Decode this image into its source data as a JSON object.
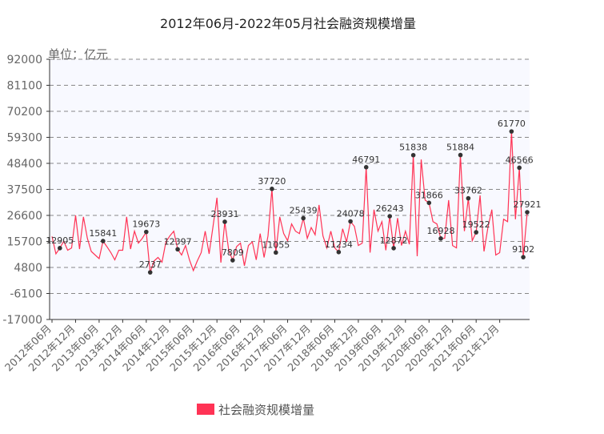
{
  "chart_data": {
    "type": "line",
    "title": "2012年06月-2022年05月社会融资规模增量",
    "unit_label": "单位：亿元",
    "y_ticks": [
      92000,
      81100,
      70200,
      59300,
      48400,
      37500,
      26600,
      15700,
      4800,
      -6100,
      -17000
    ],
    "ylim": [
      -17000,
      92000
    ],
    "grid": true,
    "legend_position": "bottom",
    "line_color": "#ff3355",
    "x_tick_labels": [
      "2012年06月",
      "2012年12月",
      "2013年06月",
      "2013年12月",
      "2014年06月",
      "2014年12月",
      "2015年06月",
      "2015年12月",
      "2016年06月",
      "2016年12月",
      "2017年06月",
      "2017年12月",
      "2018年06月",
      "2018年12月",
      "2019年06月",
      "2019年12月",
      "2020年06月",
      "2020年12月",
      "2021年06月",
      "2021年12月"
    ],
    "series": [
      {
        "name": "社会融资规模增量",
        "values": [
          17800,
          10500,
          12905,
          15800,
          12000,
          13000,
          26600,
          12500,
          26000,
          17000,
          11500,
          10000,
          8500,
          15841,
          13500,
          11000,
          8000,
          12000,
          12000,
          26000,
          12500,
          20000,
          15000,
          17000,
          19673,
          2737,
          7500,
          9000,
          7000,
          15500,
          18000,
          20000,
          12397,
          10000,
          14000,
          8000,
          3500,
          7500,
          11000,
          20000,
          10500,
          22000,
          34000,
          6800,
          23931,
          12000,
          7809,
          13500,
          15000,
          5500,
          14000,
          15500,
          8000,
          19000,
          9000,
          18000,
          37720,
          11055,
          26000,
          19000,
          16000,
          23000,
          20000,
          19000,
          25439,
          17000,
          21500,
          18500,
          31000,
          18000,
          13000,
          20000,
          13000,
          11234,
          21000,
          15500,
          24078,
          22000,
          14000,
          15000,
          46791,
          11000,
          29000,
          20000,
          24000,
          12000,
          26243,
          12872,
          25500,
          14000,
          20000,
          14500,
          51838,
          9500,
          50000,
          33000,
          31866,
          24000,
          23000,
          16928,
          17000,
          33000,
          14000,
          13000,
          51884,
          20000,
          33762,
          16000,
          19522,
          35000,
          11500,
          21500,
          29000,
          10000,
          11000,
          25000,
          24000,
          61770,
          25000,
          46566,
          9102,
          27921
        ]
      }
    ],
    "data_labels": [
      {
        "index": 2,
        "text": "12905"
      },
      {
        "index": 13,
        "text": "15841"
      },
      {
        "index": 24,
        "text": "19673"
      },
      {
        "index": 25,
        "text": "2737"
      },
      {
        "index": 32,
        "text": "12397"
      },
      {
        "index": 44,
        "text": "23931"
      },
      {
        "index": 46,
        "text": "7809"
      },
      {
        "index": 56,
        "text": "37720"
      },
      {
        "index": 57,
        "text": "11055"
      },
      {
        "index": 64,
        "text": "25439"
      },
      {
        "index": 73,
        "text": "11234"
      },
      {
        "index": 76,
        "text": "24078"
      },
      {
        "index": 80,
        "text": "46791"
      },
      {
        "index": 86,
        "text": "26243"
      },
      {
        "index": 87,
        "text": "12872"
      },
      {
        "index": 92,
        "text": "51838"
      },
      {
        "index": 96,
        "text": "31866"
      },
      {
        "index": 99,
        "text": "16928"
      },
      {
        "index": 104,
        "text": "51884"
      },
      {
        "index": 106,
        "text": "33762"
      },
      {
        "index": 108,
        "text": "19522"
      },
      {
        "index": 117,
        "text": "61770"
      },
      {
        "index": 119,
        "text": "46566"
      },
      {
        "index": 120,
        "text": "9102"
      },
      {
        "index": 121,
        "text": "27921"
      }
    ]
  }
}
